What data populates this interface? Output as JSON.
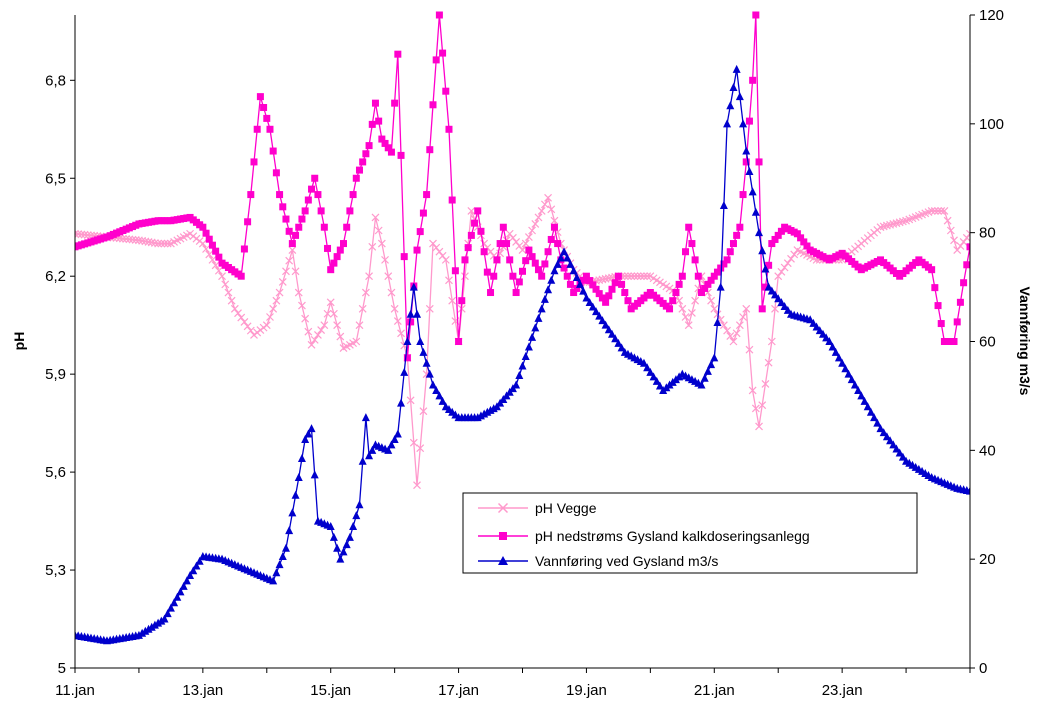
{
  "chart_data": {
    "type": "line",
    "title": "",
    "xlabel": "",
    "ylabel_left": "pH",
    "ylabel_right": "Vannføring m3/s",
    "x_range_days": [
      11,
      25
    ],
    "x_ticks": [
      {
        "day": 11,
        "label": "11.jan"
      },
      {
        "day": 13,
        "label": "13.jan"
      },
      {
        "day": 15,
        "label": "15.jan"
      },
      {
        "day": 17,
        "label": "17.jan"
      },
      {
        "day": 19,
        "label": "19.jan"
      },
      {
        "day": 21,
        "label": "21.jan"
      },
      {
        "day": 23,
        "label": "23.jan"
      }
    ],
    "y_left": {
      "min": 5.0,
      "max": 7.0,
      "ticks": [
        "5",
        "5,3",
        "5,6",
        "5,9",
        "6,2",
        "6,5",
        "6,8"
      ],
      "tick_values": [
        5.0,
        5.3,
        5.6,
        5.9,
        6.2,
        6.5,
        6.8
      ]
    },
    "y_right": {
      "min": 0,
      "max": 120,
      "ticks": [
        "0",
        "20",
        "40",
        "60",
        "80",
        "100",
        "120"
      ],
      "tick_values": [
        0,
        20,
        40,
        60,
        80,
        100,
        120
      ]
    },
    "grid": false,
    "legend_position": "lower-right inside plot",
    "series": [
      {
        "name": "pH Vegge",
        "axis": "left",
        "color": "#ff99cc",
        "marker": "x",
        "points": [
          [
            11.0,
            6.33
          ],
          [
            11.5,
            6.32
          ],
          [
            12.0,
            6.31
          ],
          [
            12.3,
            6.3
          ],
          [
            12.5,
            6.3
          ],
          [
            12.8,
            6.33
          ],
          [
            13.0,
            6.3
          ],
          [
            13.3,
            6.2
          ],
          [
            13.5,
            6.1
          ],
          [
            13.8,
            6.02
          ],
          [
            14.0,
            6.05
          ],
          [
            14.2,
            6.15
          ],
          [
            14.4,
            6.28
          ],
          [
            14.5,
            6.15
          ],
          [
            14.7,
            5.99
          ],
          [
            14.9,
            6.05
          ],
          [
            15.0,
            6.12
          ],
          [
            15.2,
            5.98
          ],
          [
            15.4,
            6.0
          ],
          [
            15.6,
            6.2
          ],
          [
            15.7,
            6.38
          ],
          [
            15.8,
            6.3
          ],
          [
            16.0,
            6.1
          ],
          [
            16.2,
            5.95
          ],
          [
            16.35,
            5.56
          ],
          [
            16.5,
            5.9
          ],
          [
            16.6,
            6.3
          ],
          [
            16.8,
            6.25
          ],
          [
            17.0,
            6.0
          ],
          [
            17.2,
            6.4
          ],
          [
            17.4,
            6.3
          ],
          [
            17.6,
            6.25
          ],
          [
            17.8,
            6.33
          ],
          [
            18.0,
            6.28
          ],
          [
            18.2,
            6.36
          ],
          [
            18.4,
            6.44
          ],
          [
            18.6,
            6.3
          ],
          [
            18.8,
            6.22
          ],
          [
            19.0,
            6.18
          ],
          [
            19.5,
            6.2
          ],
          [
            20.0,
            6.2
          ],
          [
            20.4,
            6.15
          ],
          [
            20.6,
            6.05
          ],
          [
            20.8,
            6.2
          ],
          [
            21.0,
            6.1
          ],
          [
            21.3,
            6.0
          ],
          [
            21.5,
            6.1
          ],
          [
            21.6,
            5.85
          ],
          [
            21.7,
            5.74
          ],
          [
            21.9,
            6.0
          ],
          [
            22.0,
            6.2
          ],
          [
            22.3,
            6.28
          ],
          [
            22.6,
            6.25
          ],
          [
            23.0,
            6.25
          ],
          [
            23.3,
            6.3
          ],
          [
            23.6,
            6.35
          ],
          [
            24.0,
            6.37
          ],
          [
            24.4,
            6.4
          ],
          [
            24.6,
            6.4
          ],
          [
            24.8,
            6.28
          ],
          [
            25.0,
            6.33
          ]
        ]
      },
      {
        "name": "pH nedstrøms Gysland kalkdoseringsanlegg",
        "axis": "left",
        "color": "#ff00cc",
        "marker": "square",
        "points": [
          [
            11.0,
            6.29
          ],
          [
            11.5,
            6.32
          ],
          [
            12.0,
            6.36
          ],
          [
            12.3,
            6.37
          ],
          [
            12.5,
            6.37
          ],
          [
            12.8,
            6.38
          ],
          [
            13.0,
            6.35
          ],
          [
            13.3,
            6.24
          ],
          [
            13.6,
            6.2
          ],
          [
            13.75,
            6.45
          ],
          [
            13.9,
            6.75
          ],
          [
            14.05,
            6.65
          ],
          [
            14.2,
            6.45
          ],
          [
            14.4,
            6.3
          ],
          [
            14.6,
            6.4
          ],
          [
            14.75,
            6.5
          ],
          [
            14.9,
            6.35
          ],
          [
            15.0,
            6.22
          ],
          [
            15.2,
            6.3
          ],
          [
            15.4,
            6.5
          ],
          [
            15.6,
            6.6
          ],
          [
            15.7,
            6.73
          ],
          [
            15.8,
            6.62
          ],
          [
            15.95,
            6.58
          ],
          [
            16.05,
            6.88
          ],
          [
            16.2,
            5.95
          ],
          [
            16.35,
            6.28
          ],
          [
            16.5,
            6.45
          ],
          [
            16.7,
            7.0
          ],
          [
            16.85,
            6.65
          ],
          [
            17.0,
            6.0
          ],
          [
            17.1,
            6.25
          ],
          [
            17.3,
            6.4
          ],
          [
            17.5,
            6.15
          ],
          [
            17.7,
            6.35
          ],
          [
            17.9,
            6.15
          ],
          [
            18.1,
            6.28
          ],
          [
            18.3,
            6.2
          ],
          [
            18.5,
            6.35
          ],
          [
            18.6,
            6.25
          ],
          [
            18.8,
            6.15
          ],
          [
            19.0,
            6.2
          ],
          [
            19.3,
            6.12
          ],
          [
            19.5,
            6.2
          ],
          [
            19.7,
            6.1
          ],
          [
            20.0,
            6.15
          ],
          [
            20.3,
            6.1
          ],
          [
            20.5,
            6.2
          ],
          [
            20.6,
            6.35
          ],
          [
            20.8,
            6.15
          ],
          [
            21.0,
            6.2
          ],
          [
            21.2,
            6.25
          ],
          [
            21.4,
            6.35
          ],
          [
            21.5,
            6.55
          ],
          [
            21.6,
            6.8
          ],
          [
            21.65,
            7.0
          ],
          [
            21.75,
            6.1
          ],
          [
            21.9,
            6.3
          ],
          [
            22.1,
            6.35
          ],
          [
            22.3,
            6.33
          ],
          [
            22.5,
            6.28
          ],
          [
            22.8,
            6.25
          ],
          [
            23.0,
            6.27
          ],
          [
            23.3,
            6.22
          ],
          [
            23.6,
            6.25
          ],
          [
            23.9,
            6.2
          ],
          [
            24.2,
            6.25
          ],
          [
            24.4,
            6.22
          ],
          [
            24.6,
            6.0
          ],
          [
            24.75,
            6.0
          ],
          [
            24.9,
            6.18
          ],
          [
            25.0,
            6.29
          ]
        ]
      },
      {
        "name": "Vannføring ved Gysland m3/s",
        "axis": "right",
        "color": "#0000cc",
        "marker": "triangle",
        "points": [
          [
            11.0,
            6.0
          ],
          [
            11.5,
            5.0
          ],
          [
            12.0,
            6.0
          ],
          [
            12.4,
            9.0
          ],
          [
            12.6,
            13.0
          ],
          [
            12.8,
            17.0
          ],
          [
            13.0,
            20.5
          ],
          [
            13.3,
            20.0
          ],
          [
            13.6,
            18.5
          ],
          [
            13.9,
            17.0
          ],
          [
            14.1,
            16.0
          ],
          [
            14.3,
            22.0
          ],
          [
            14.5,
            35.0
          ],
          [
            14.6,
            42.0
          ],
          [
            14.7,
            44.0
          ],
          [
            14.8,
            27.0
          ],
          [
            15.0,
            26.0
          ],
          [
            15.15,
            20.0
          ],
          [
            15.3,
            24.0
          ],
          [
            15.45,
            30.0
          ],
          [
            15.55,
            46.0
          ],
          [
            15.6,
            39.0
          ],
          [
            15.7,
            41.0
          ],
          [
            15.9,
            40.0
          ],
          [
            16.05,
            43.0
          ],
          [
            16.2,
            60.0
          ],
          [
            16.3,
            70.0
          ],
          [
            16.4,
            60.0
          ],
          [
            16.6,
            52.0
          ],
          [
            16.8,
            48.0
          ],
          [
            17.0,
            46.0
          ],
          [
            17.3,
            46.0
          ],
          [
            17.6,
            48.0
          ],
          [
            17.9,
            52.0
          ],
          [
            18.1,
            59.0
          ],
          [
            18.3,
            66.0
          ],
          [
            18.5,
            73.0
          ],
          [
            18.65,
            76.5
          ],
          [
            18.8,
            73.0
          ],
          [
            19.0,
            68.0
          ],
          [
            19.3,
            63.0
          ],
          [
            19.6,
            58.0
          ],
          [
            19.9,
            56.0
          ],
          [
            20.2,
            51.0
          ],
          [
            20.5,
            54.0
          ],
          [
            20.8,
            52.0
          ],
          [
            21.0,
            57.0
          ],
          [
            21.1,
            70.0
          ],
          [
            21.2,
            100.0
          ],
          [
            21.35,
            110.0
          ],
          [
            21.5,
            95.0
          ],
          [
            21.7,
            80.0
          ],
          [
            21.85,
            70.0
          ],
          [
            22.2,
            65.0
          ],
          [
            22.5,
            64.0
          ],
          [
            22.8,
            60.0
          ],
          [
            23.2,
            52.0
          ],
          [
            23.6,
            44.0
          ],
          [
            24.0,
            38.0
          ],
          [
            24.4,
            35.0
          ],
          [
            24.8,
            33.0
          ],
          [
            25.0,
            32.5
          ]
        ]
      }
    ]
  }
}
